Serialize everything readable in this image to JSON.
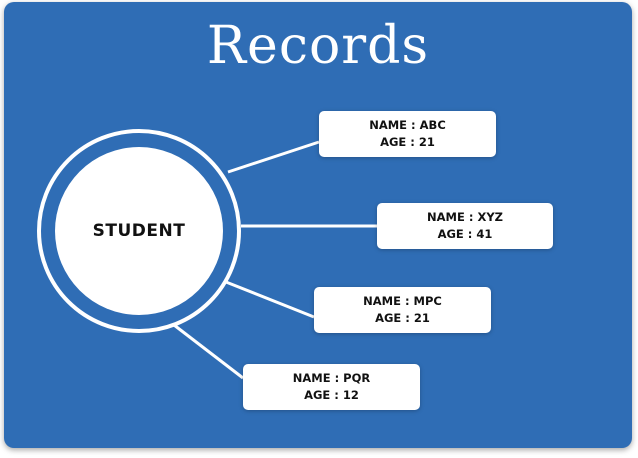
{
  "title": "Records",
  "center": {
    "label": "STUDENT"
  },
  "records": [
    {
      "name": "NAME : ABC",
      "age": "AGE : 21"
    },
    {
      "name": "NAME : XYZ",
      "age": "AGE : 41"
    },
    {
      "name": "NAME : MPC",
      "age": "AGE : 21"
    },
    {
      "name": "NAME : PQR",
      "age": "AGE : 12"
    }
  ],
  "colors": {
    "background": "#2f6db5",
    "card": "#ffffff",
    "text": "#111111"
  }
}
